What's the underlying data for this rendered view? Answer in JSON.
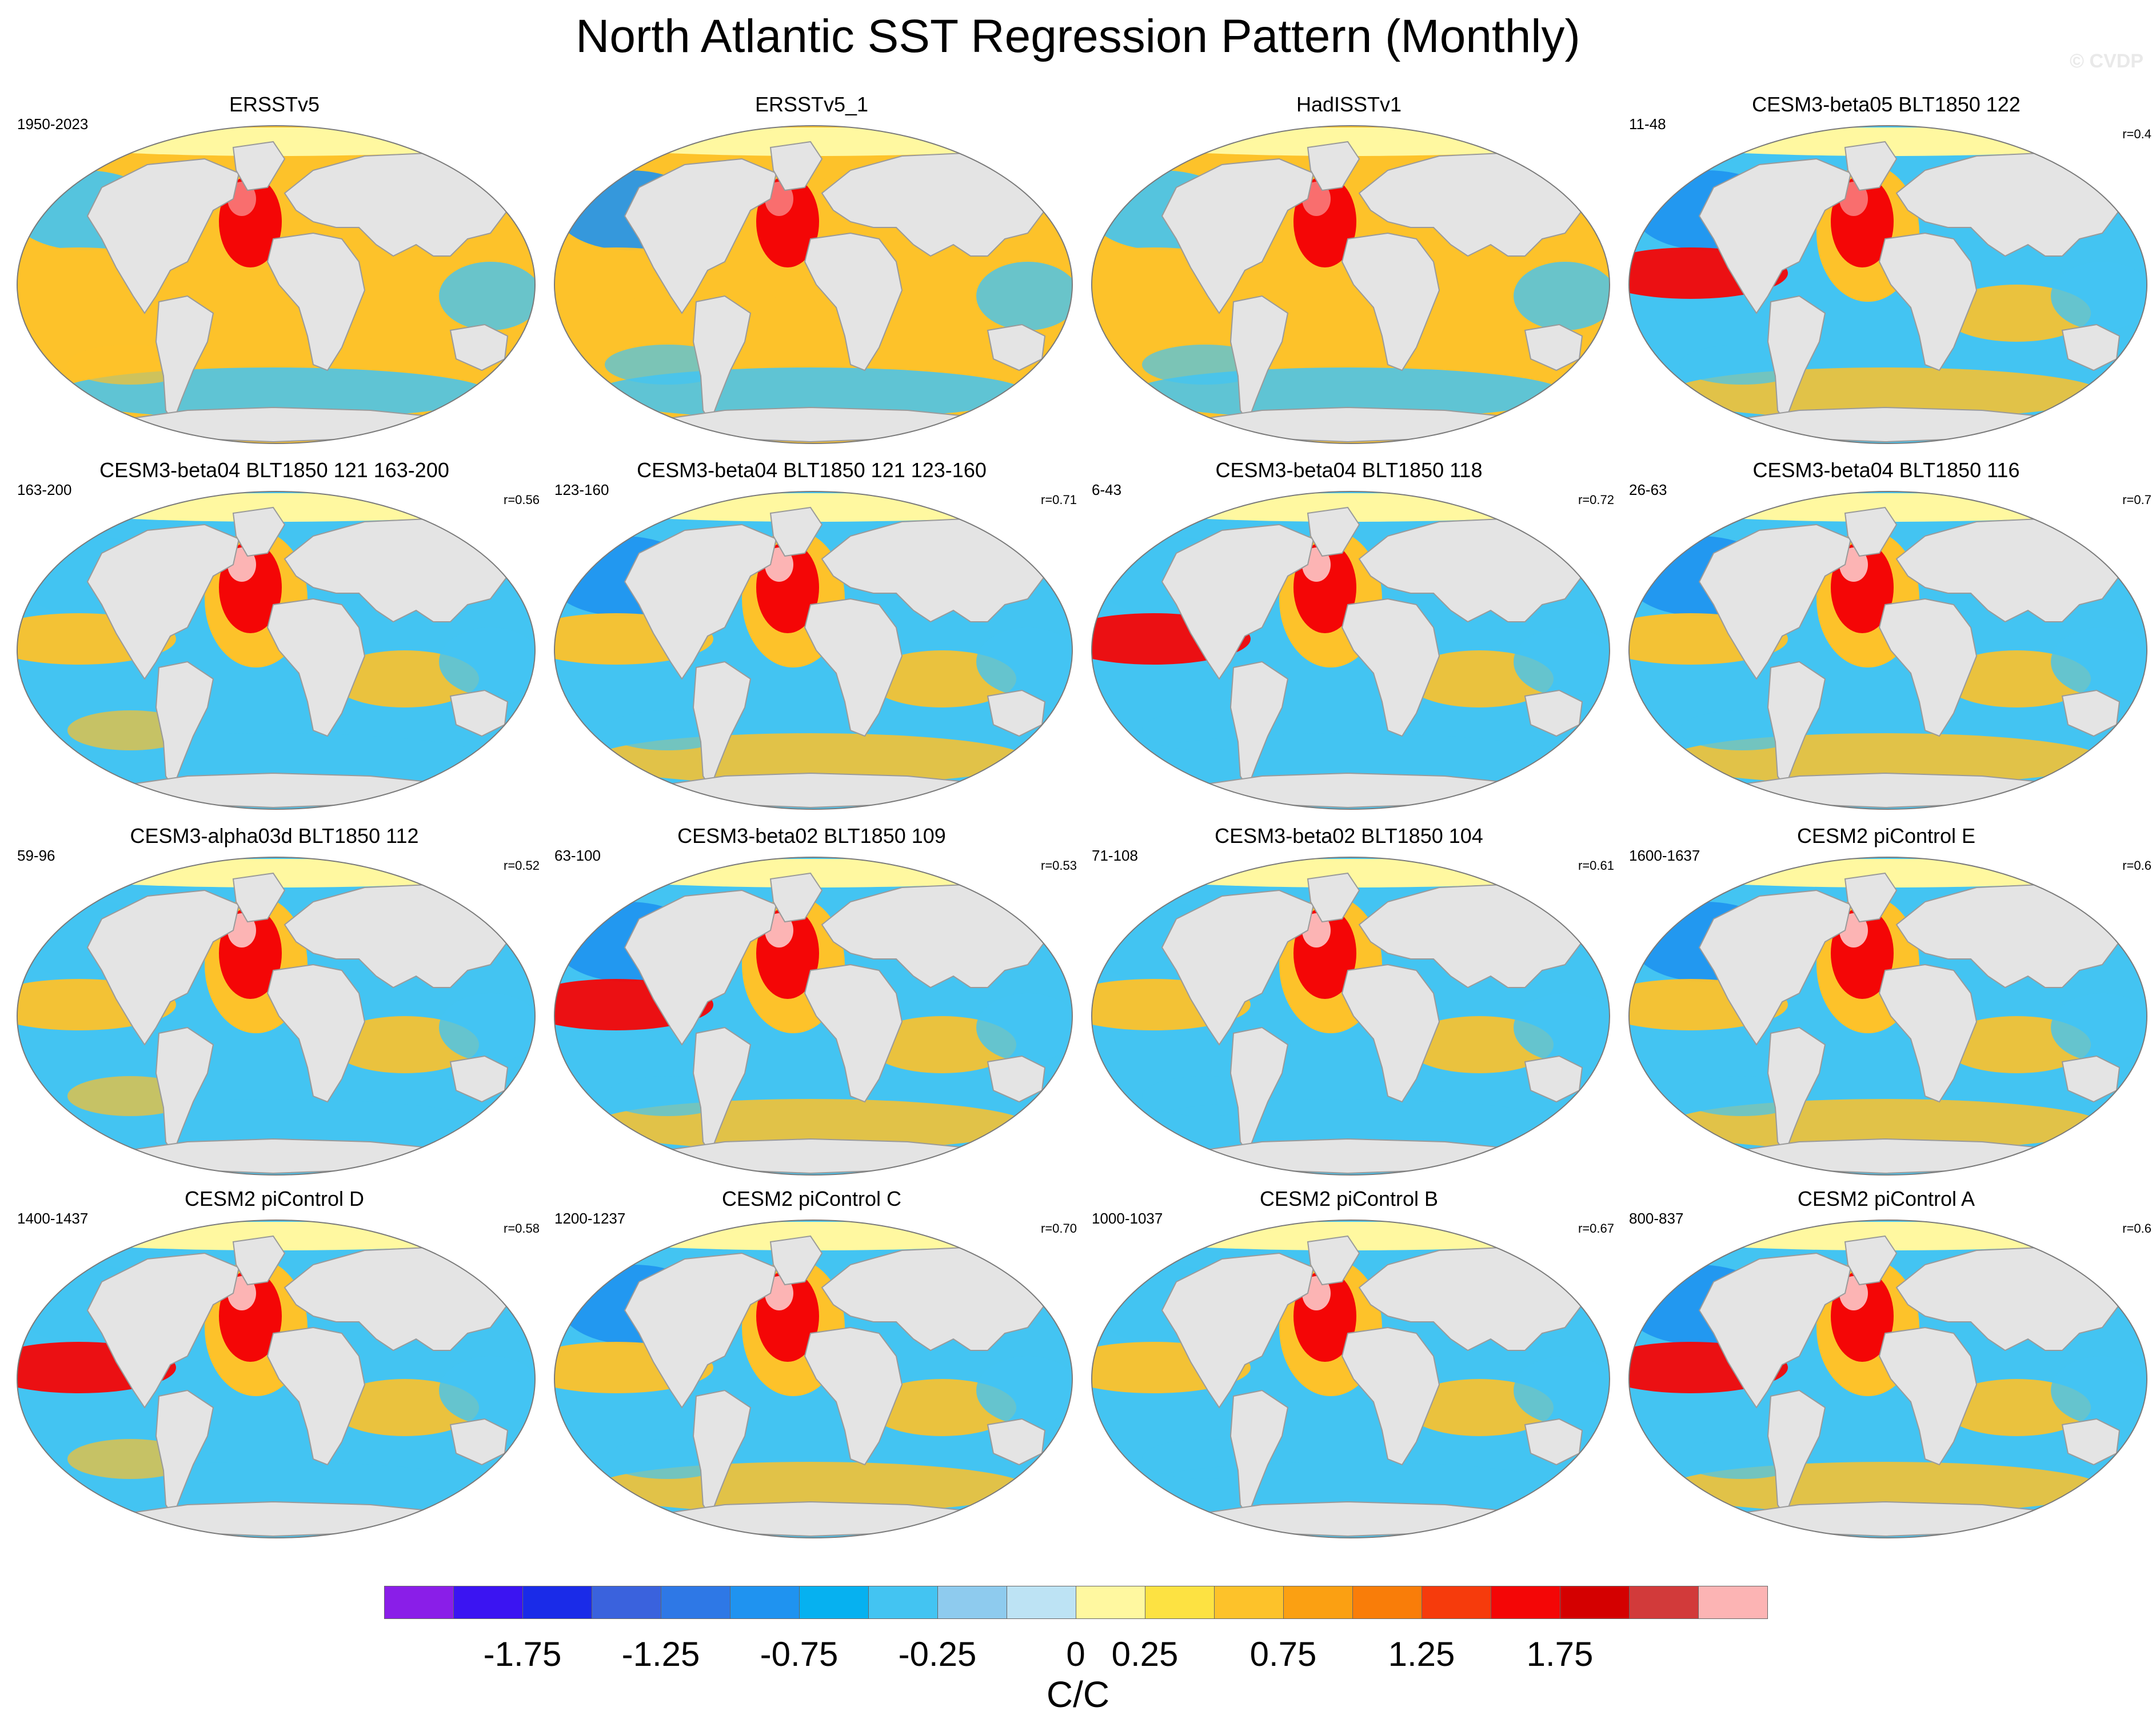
{
  "figure": {
    "title": "North Atlantic SST Regression Pattern (Monthly)",
    "copyright": "© CVDP"
  },
  "panels": [
    {
      "title": "ERSSTv5",
      "years": "1950-2023",
      "corr": ""
    },
    {
      "title": "ERSSTv5_1",
      "years": "",
      "corr": ""
    },
    {
      "title": "HadISSTv1",
      "years": "",
      "corr": ""
    },
    {
      "title": "CESM3-beta05 BLT1850 122",
      "years": "11-48",
      "corr": "r=0.4"
    },
    {
      "title": "CESM3-beta04 BLT1850 121 163-200",
      "years": "163-200",
      "corr": "r=0.56"
    },
    {
      "title": "CESM3-beta04 BLT1850 121 123-160",
      "years": "123-160",
      "corr": "r=0.71"
    },
    {
      "title": "CESM3-beta04 BLT1850 118",
      "years": "6-43",
      "corr": "r=0.72"
    },
    {
      "title": "CESM3-beta04 BLT1850 116",
      "years": "26-63",
      "corr": "r=0.7"
    },
    {
      "title": "CESM3-alpha03d BLT1850 112",
      "years": "59-96",
      "corr": "r=0.52"
    },
    {
      "title": "CESM3-beta02 BLT1850 109",
      "years": "63-100",
      "corr": "r=0.53"
    },
    {
      "title": "CESM3-beta02 BLT1850 104",
      "years": "71-108",
      "corr": "r=0.61"
    },
    {
      "title": "CESM2 piControl E",
      "years": "1600-1637",
      "corr": "r=0.6"
    },
    {
      "title": "CESM2 piControl D",
      "years": "1400-1437",
      "corr": "r=0.58"
    },
    {
      "title": "CESM2 piControl C",
      "years": "1200-1237",
      "corr": "r=0.70"
    },
    {
      "title": "CESM2 piControl B",
      "years": "1000-1037",
      "corr": "r=0.67"
    },
    {
      "title": "CESM2 piControl A",
      "years": "800-837",
      "corr": "r=0.6"
    }
  ],
  "colorbar": {
    "units": "C/C",
    "tick_labels": [
      "-1.75",
      "-1.25",
      "-0.75",
      "-0.25",
      "0",
      "0.25",
      "0.75",
      "1.25",
      "1.75"
    ],
    "colors": [
      "#8a1ee8",
      "#3b14f2",
      "#1a2be8",
      "#3a62dd",
      "#2e78e6",
      "#1f93f0",
      "#06b1f0",
      "#43c4f2",
      "#8ecbee",
      "#bde3f4",
      "#fff8a0",
      "#fde242",
      "#fdc22a",
      "#fba012",
      "#f97d09",
      "#f63b0c",
      "#f40606",
      "#d40000",
      "#d23a3a",
      "#fcb4b4"
    ]
  },
  "map_style": {
    "land": "#e4e4e4",
    "coast": "#9a9a9a",
    "ocean_colors": {
      "neg": "#43c4f2",
      "pos": "#fdc22a",
      "strong_pos": "#f40606",
      "weak": "#fff8a0",
      "strong_neg": "#1f93f0"
    }
  }
}
